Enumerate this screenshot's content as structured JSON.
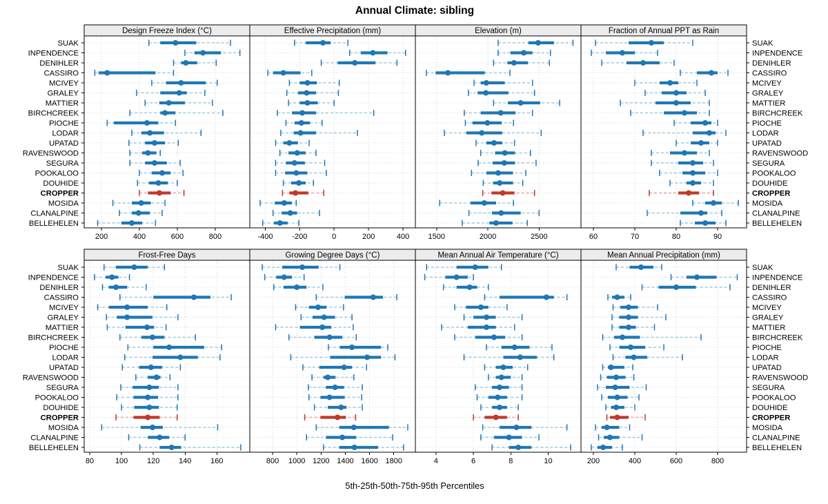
{
  "title": "Annual Climate: sibling",
  "caption": "5th-25th-50th-75th-95th Percentiles",
  "highlight_station": "CROPPER",
  "colors": {
    "series": "#1f77b4",
    "series_light": "#9ecae1",
    "highlight": "#c0392b",
    "highlight_light": "#e5a79e",
    "strip_bg": "#ececec",
    "grid": "#cccccc",
    "border": "#000000",
    "panel_bg": "#ffffff"
  },
  "stations": [
    "SUAK",
    "INPENDENCE",
    "DENIHLER",
    "CASSIRO",
    "MCIVEY",
    "GRALEY",
    "MATTIER",
    "BIRCHCREEK",
    "PIOCHE",
    "LODAR",
    "UPATAD",
    "RAVENSWOOD",
    "SEGURA",
    "POOKALOO",
    "DOUHIDE",
    "CROPPER",
    "MOSIDA",
    "CLANALPINE",
    "BELLEHELEN"
  ],
  "chart_data": {
    "type": "percentile-interval-dotplot",
    "percentile_labels": [
      "5th",
      "25th",
      "50th",
      "75th",
      "95th"
    ],
    "layout": {
      "rows": 2,
      "cols": 4,
      "grid": "dotted",
      "station_labels": "both-sides"
    },
    "panels": [
      {
        "label": "Design Freeze Index (°C)",
        "xlim": [
          109,
          982
        ],
        "ticks": [
          200,
          400,
          600,
          800
        ],
        "values": [
          [
            450,
            510,
            590,
            700,
            880
          ],
          [
            640,
            690,
            735,
            830,
            930
          ],
          [
            580,
            620,
            645,
            705,
            805
          ],
          [
            165,
            185,
            230,
            485,
            580
          ],
          [
            465,
            540,
            620,
            750,
            810
          ],
          [
            385,
            510,
            610,
            650,
            745
          ],
          [
            430,
            505,
            555,
            640,
            785
          ],
          [
            350,
            510,
            535,
            590,
            840
          ],
          [
            230,
            265,
            440,
            500,
            590
          ],
          [
            360,
            410,
            455,
            530,
            725
          ],
          [
            345,
            430,
            480,
            535,
            605
          ],
          [
            350,
            415,
            445,
            490,
            510
          ],
          [
            350,
            430,
            480,
            545,
            615
          ],
          [
            400,
            465,
            520,
            565,
            630
          ],
          [
            390,
            450,
            500,
            550,
            600
          ],
          [
            400,
            445,
            505,
            565,
            635
          ],
          [
            260,
            360,
            410,
            460,
            535
          ],
          [
            295,
            360,
            395,
            455,
            520
          ],
          [
            180,
            305,
            360,
            415,
            485
          ]
        ]
      },
      {
        "label": "Effective Precipitation (mm)",
        "xlim": [
          -490,
          472
        ],
        "ticks": [
          -400,
          -200,
          0,
          200,
          400
        ],
        "values": [
          [
            -230,
            -165,
            -65,
            -20,
            80
          ],
          [
            90,
            155,
            225,
            310,
            415
          ],
          [
            -75,
            20,
            120,
            240,
            365
          ],
          [
            -385,
            -355,
            -295,
            -195,
            -130
          ],
          [
            -260,
            -200,
            -155,
            -100,
            30
          ],
          [
            -275,
            -210,
            -160,
            -105,
            25
          ],
          [
            -265,
            -200,
            -155,
            -95,
            0
          ],
          [
            -330,
            -245,
            -185,
            -105,
            230
          ],
          [
            -280,
            -230,
            -190,
            -140,
            -70
          ],
          [
            -310,
            -235,
            -195,
            -105,
            135
          ],
          [
            -340,
            -295,
            -260,
            -210,
            -145
          ],
          [
            -315,
            -265,
            -215,
            -165,
            -105
          ],
          [
            -340,
            -280,
            -230,
            -170,
            -55
          ],
          [
            -340,
            -285,
            -220,
            -155,
            -45
          ],
          [
            -295,
            -250,
            -205,
            -165,
            -120
          ],
          [
            -300,
            -260,
            -225,
            -150,
            -60
          ],
          [
            -430,
            -345,
            -290,
            -245,
            -220
          ],
          [
            -355,
            -305,
            -255,
            -215,
            -85
          ],
          [
            -415,
            -350,
            -315,
            -270,
            -205
          ]
        ]
      },
      {
        "label": "Elevation (m)",
        "xlim": [
          1293,
          2908
        ],
        "ticks": [
          1500,
          2000,
          2500
        ],
        "values": [
          [
            2100,
            2395,
            2490,
            2645,
            2830
          ],
          [
            2100,
            2220,
            2350,
            2435,
            2610
          ],
          [
            2055,
            2190,
            2255,
            2390,
            2600
          ],
          [
            1400,
            1490,
            1610,
            1970,
            2215
          ],
          [
            1865,
            1930,
            1985,
            2165,
            2435
          ],
          [
            1810,
            1900,
            1980,
            2200,
            2455
          ],
          [
            2055,
            2195,
            2320,
            2510,
            2700
          ],
          [
            1770,
            1930,
            2125,
            2270,
            2435
          ],
          [
            1780,
            1850,
            1995,
            2135,
            2250
          ],
          [
            1575,
            1790,
            1940,
            2140,
            2520
          ],
          [
            1885,
            1985,
            2060,
            2140,
            2260
          ],
          [
            1930,
            2070,
            2165,
            2265,
            2415
          ],
          [
            1905,
            2045,
            2160,
            2265,
            2470
          ],
          [
            1840,
            1985,
            2100,
            2245,
            2370
          ],
          [
            1955,
            2050,
            2115,
            2245,
            2340
          ],
          [
            1950,
            2035,
            2145,
            2260,
            2455
          ],
          [
            1530,
            1830,
            1965,
            2080,
            2250
          ],
          [
            1815,
            2040,
            2130,
            2320,
            2500
          ],
          [
            1750,
            2015,
            2080,
            2240,
            2385
          ]
        ]
      },
      {
        "label": "Fraction of Annual PPT as Rain",
        "xlim": [
          57,
          97
        ],
        "ticks": [
          60,
          70,
          80,
          90
        ],
        "values": [
          [
            60.5,
            68.5,
            74,
            77,
            84
          ],
          [
            59.5,
            63,
            67,
            70,
            75.5
          ],
          [
            62,
            68,
            72,
            76,
            79.5
          ],
          [
            81,
            85,
            88.5,
            90,
            92.5
          ],
          [
            70,
            76,
            78.5,
            80.5,
            85
          ],
          [
            72.5,
            76.5,
            80,
            82.5,
            87
          ],
          [
            66.5,
            75,
            80,
            83.5,
            88
          ],
          [
            69,
            77,
            82,
            85,
            88
          ],
          [
            79.5,
            83.5,
            87,
            88.5,
            90
          ],
          [
            72,
            84,
            88,
            89.5,
            92
          ],
          [
            80,
            83.5,
            86,
            88,
            90
          ],
          [
            74,
            78.5,
            82,
            85,
            88
          ],
          [
            74,
            80.5,
            84,
            86.5,
            89
          ],
          [
            76,
            81.5,
            84,
            87,
            90
          ],
          [
            78.5,
            82.5,
            84,
            86,
            89
          ],
          [
            73.5,
            80.5,
            83,
            85.5,
            89
          ],
          [
            84,
            87,
            89,
            91,
            95
          ],
          [
            73,
            81,
            86,
            87.5,
            91
          ],
          [
            81,
            84.5,
            87,
            89.5,
            92
          ]
        ]
      },
      {
        "label": "Frost-Free Days",
        "xlim": [
          76.5,
          180.7
        ],
        "ticks": [
          80,
          100,
          120,
          140,
          160
        ],
        "values": [
          [
            89,
            96.5,
            108,
            116.5,
            127
          ],
          [
            83,
            90,
            94,
            98,
            105
          ],
          [
            88,
            92,
            96.5,
            103.5,
            115.5
          ],
          [
            99,
            120,
            145.5,
            156,
            169
          ],
          [
            85,
            92,
            103.5,
            116.5,
            128.5
          ],
          [
            90.5,
            97,
            103.5,
            119.5,
            135.5
          ],
          [
            91,
            102.5,
            116,
            120.5,
            128
          ],
          [
            99,
            112.5,
            119.5,
            127,
            146.5
          ],
          [
            104,
            120,
            130,
            152,
            163
          ],
          [
            102,
            119.5,
            137,
            148,
            162
          ],
          [
            100.5,
            111,
            118.5,
            125.5,
            137
          ],
          [
            109,
            116.5,
            122,
            124.5,
            130.5
          ],
          [
            99.5,
            107,
            117.5,
            123.5,
            135.5
          ],
          [
            97,
            107.5,
            116.5,
            123,
            135.5
          ],
          [
            100,
            108,
            117.5,
            123.5,
            135
          ],
          [
            96.5,
            107.5,
            116.5,
            124,
            135
          ],
          [
            87.5,
            112,
            119.5,
            126,
            160.5
          ],
          [
            104.5,
            116.5,
            124,
            130,
            140
          ],
          [
            111.5,
            124,
            131.5,
            137.5,
            175
          ]
        ]
      },
      {
        "label": "Growing Degree Days (°C)",
        "xlim": [
          612,
          1978
        ],
        "ticks": [
          800,
          1000,
          1200,
          1400,
          1600,
          1800
        ],
        "values": [
          [
            715,
            880,
            1045,
            1180,
            1355
          ],
          [
            735,
            830,
            895,
            960,
            1060
          ],
          [
            810,
            890,
            1000,
            1080,
            1215
          ],
          [
            1160,
            1395,
            1630,
            1710,
            1825
          ],
          [
            990,
            1100,
            1175,
            1245,
            1385
          ],
          [
            1035,
            1130,
            1225,
            1315,
            1455
          ],
          [
            825,
            1025,
            1210,
            1285,
            1465
          ],
          [
            935,
            1145,
            1270,
            1375,
            1490
          ],
          [
            1260,
            1355,
            1455,
            1695,
            1750
          ],
          [
            950,
            1275,
            1580,
            1695,
            1810
          ],
          [
            1050,
            1185,
            1390,
            1455,
            1575
          ],
          [
            1125,
            1220,
            1255,
            1320,
            1470
          ],
          [
            1095,
            1240,
            1315,
            1390,
            1540
          ],
          [
            1100,
            1195,
            1270,
            1395,
            1535
          ],
          [
            1145,
            1255,
            1365,
            1410,
            1540
          ],
          [
            1065,
            1195,
            1335,
            1405,
            1485
          ],
          [
            1160,
            1350,
            1470,
            1760,
            1915
          ],
          [
            1080,
            1240,
            1375,
            1490,
            1790
          ],
          [
            1220,
            1350,
            1475,
            1670,
            1880
          ]
        ]
      },
      {
        "label": "Mean Annual Air Temperature (°C)",
        "xlim": [
          2.9,
          11.75
        ],
        "ticks": [
          4,
          6,
          8,
          10
        ],
        "values": [
          [
            3.5,
            5.1,
            6.1,
            6.8,
            7.5
          ],
          [
            3.4,
            4.5,
            5.1,
            5.7,
            6.0
          ],
          [
            4.4,
            5.1,
            5.8,
            6.2,
            6.8
          ],
          [
            6.6,
            7.4,
            9.9,
            10.3,
            11.0
          ],
          [
            5.0,
            5.6,
            6.4,
            6.8,
            7.8
          ],
          [
            5.5,
            6.0,
            6.7,
            7.2,
            8.6
          ],
          [
            4.3,
            5.7,
            6.7,
            7.2,
            8.2
          ],
          [
            5.0,
            6.1,
            7.1,
            7.7,
            8.6
          ],
          [
            6.7,
            7.5,
            8.2,
            9.0,
            10.2
          ],
          [
            5.5,
            7.6,
            8.5,
            9.4,
            10.3
          ],
          [
            6.6,
            7.2,
            7.6,
            8.1,
            8.9
          ],
          [
            6.8,
            7.2,
            7.5,
            8.0,
            8.6
          ],
          [
            6.1,
            7.0,
            7.4,
            7.9,
            8.6
          ],
          [
            6.2,
            6.8,
            7.3,
            7.8,
            8.6
          ],
          [
            6.4,
            7.0,
            7.4,
            7.8,
            8.4
          ],
          [
            6.0,
            6.6,
            7.2,
            7.8,
            8.4
          ],
          [
            6.5,
            7.4,
            8.3,
            9.1,
            11.0
          ],
          [
            6.4,
            7.1,
            7.9,
            8.6,
            9.5
          ],
          [
            7.0,
            7.9,
            8.4,
            9.1,
            11.2
          ]
        ]
      },
      {
        "label": "Mean Annual Precipitation (mm)",
        "xlim": [
          140,
          940
        ],
        "ticks": [
          200,
          400,
          600,
          800
        ],
        "values": [
          [
            310,
            375,
            430,
            490,
            530
          ],
          [
            575,
            650,
            700,
            795,
            895
          ],
          [
            435,
            515,
            600,
            695,
            860
          ],
          [
            270,
            290,
            315,
            350,
            380
          ],
          [
            295,
            330,
            370,
            415,
            510
          ],
          [
            290,
            325,
            370,
            415,
            550
          ],
          [
            290,
            325,
            370,
            405,
            495
          ],
          [
            245,
            300,
            340,
            425,
            720
          ],
          [
            280,
            325,
            380,
            450,
            540
          ],
          [
            295,
            355,
            395,
            460,
            630
          ],
          [
            245,
            270,
            285,
            350,
            390
          ],
          [
            235,
            265,
            310,
            355,
            395
          ],
          [
            220,
            260,
            305,
            375,
            455
          ],
          [
            240,
            270,
            315,
            365,
            420
          ],
          [
            260,
            285,
            310,
            350,
            400
          ],
          [
            265,
            280,
            315,
            370,
            450
          ],
          [
            210,
            240,
            265,
            325,
            375
          ],
          [
            225,
            250,
            280,
            325,
            435
          ],
          [
            190,
            220,
            247,
            290,
            340
          ]
        ]
      }
    ]
  }
}
